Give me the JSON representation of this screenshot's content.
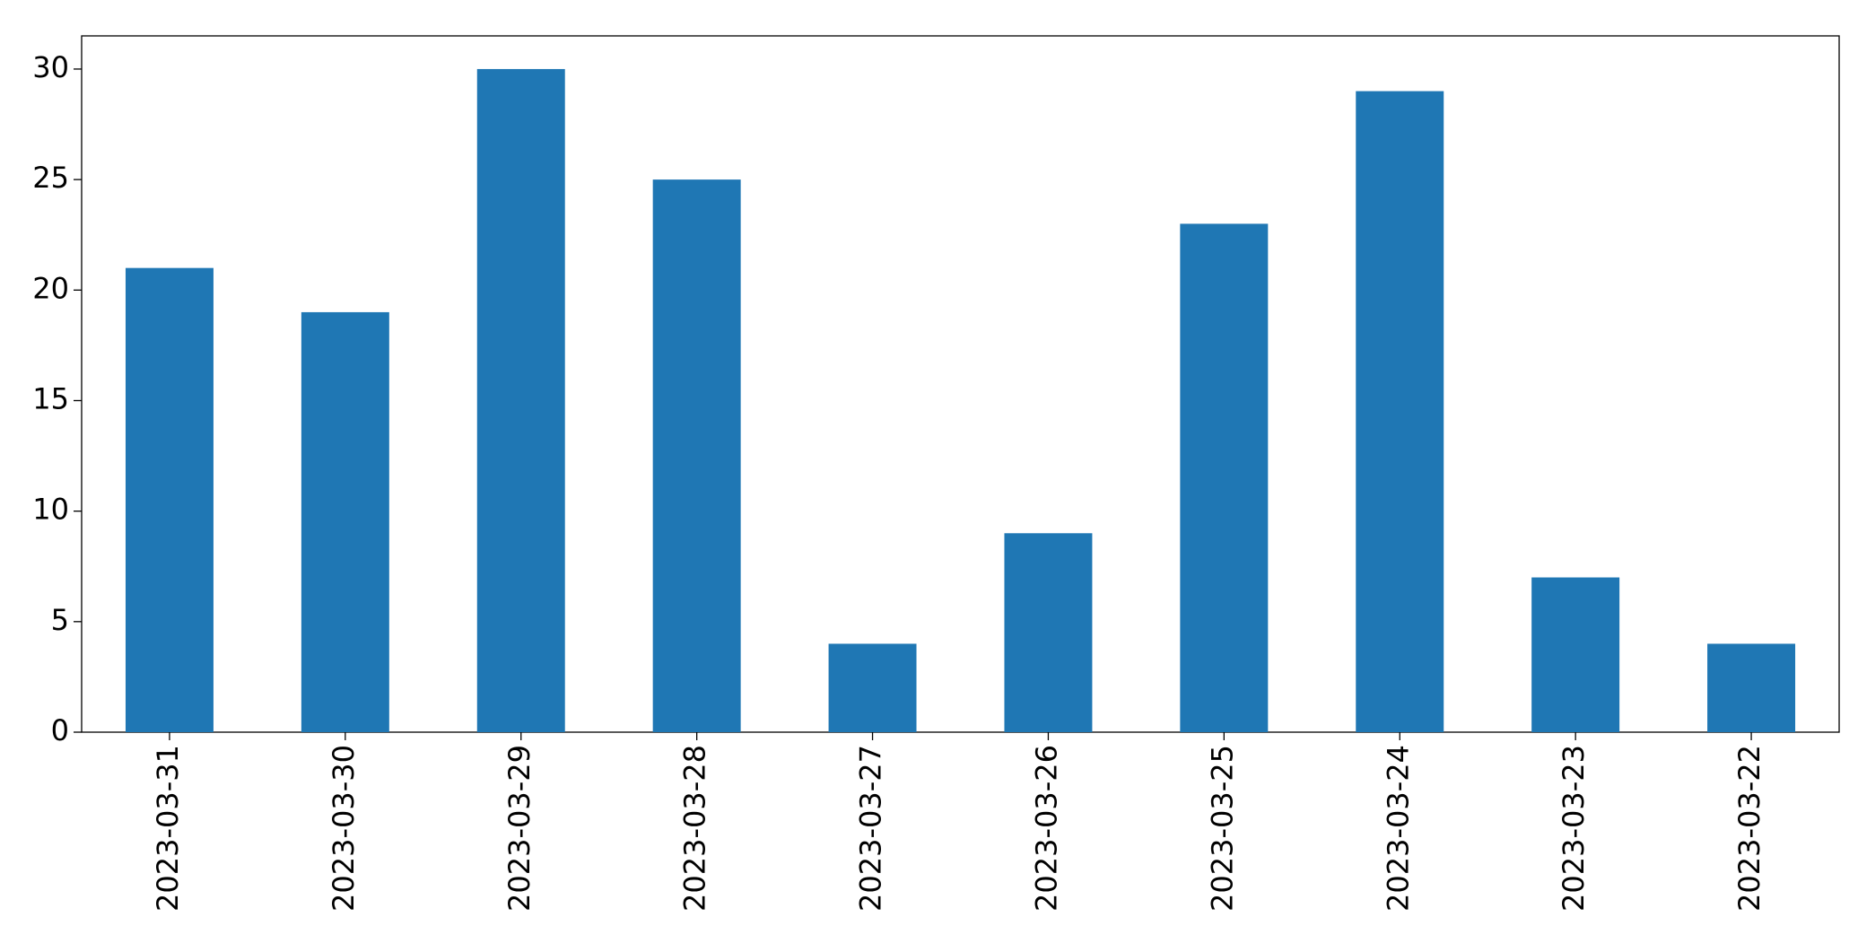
{
  "chart_data": {
    "type": "bar",
    "categories": [
      "2023-03-31",
      "2023-03-30",
      "2023-03-29",
      "2023-03-28",
      "2023-03-27",
      "2023-03-26",
      "2023-03-25",
      "2023-03-24",
      "2023-03-23",
      "2023-03-22"
    ],
    "values": [
      21,
      19,
      30,
      25,
      4,
      9,
      23,
      29,
      7,
      4
    ],
    "color": "#1f77b4",
    "ylim": [
      0,
      31.5
    ],
    "yticks": [
      0,
      5,
      10,
      15,
      20,
      25,
      30
    ],
    "grid": false
  }
}
